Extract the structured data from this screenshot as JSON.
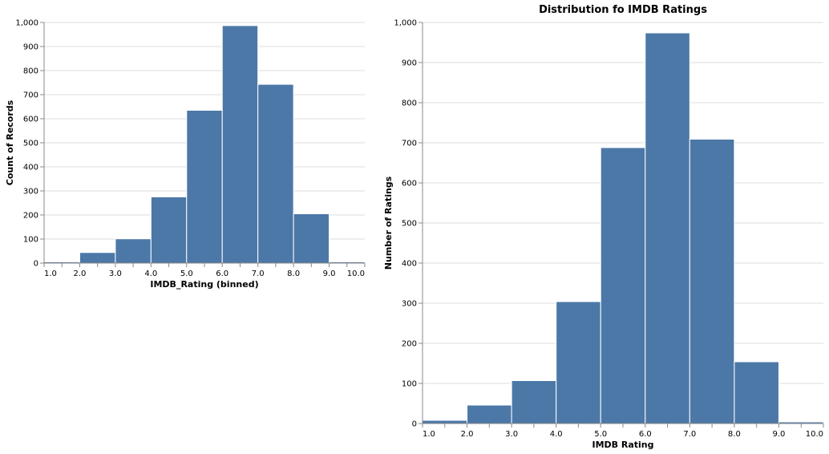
{
  "chart_data": [
    {
      "type": "bar",
      "title": "",
      "xlabel": "IMDB_Rating (binned)",
      "ylabel": "Count of Records",
      "bin_edges": [
        1,
        2,
        3,
        4,
        5,
        6,
        7,
        8,
        9,
        10
      ],
      "values": [
        5,
        44,
        101,
        275,
        635,
        987,
        743,
        205,
        5
      ],
      "x_ticks": [
        "1.0",
        "2.0",
        "3.0",
        "4.0",
        "5.0",
        "6.0",
        "7.0",
        "8.0",
        "9.0",
        "10.0"
      ],
      "y_ticks": [
        "0",
        "100",
        "200",
        "300",
        "400",
        "500",
        "600",
        "700",
        "800",
        "900",
        "1,000"
      ],
      "ylim": [
        0,
        1000
      ],
      "xlim": [
        1,
        10
      ],
      "grid": true,
      "color": "#4c78a8"
    },
    {
      "type": "bar",
      "title": "Distribution fo IMDB Ratings",
      "xlabel": "IMDB Rating",
      "ylabel": "Number of Ratings",
      "bin_edges": [
        1,
        2,
        3,
        4,
        5,
        6,
        7,
        8,
        9,
        10
      ],
      "values": [
        8,
        46,
        107,
        304,
        688,
        974,
        709,
        154,
        4
      ],
      "x_ticks": [
        "1.0",
        "2.0",
        "3.0",
        "4.0",
        "5.0",
        "6.0",
        "7.0",
        "8.0",
        "9.0",
        "10.0"
      ],
      "y_ticks": [
        "0",
        "100",
        "200",
        "300",
        "400",
        "500",
        "600",
        "700",
        "800",
        "900",
        "1,000"
      ],
      "ylim": [
        0,
        1000
      ],
      "xlim": [
        1,
        10
      ],
      "grid": true,
      "color": "#4c78a8"
    }
  ]
}
